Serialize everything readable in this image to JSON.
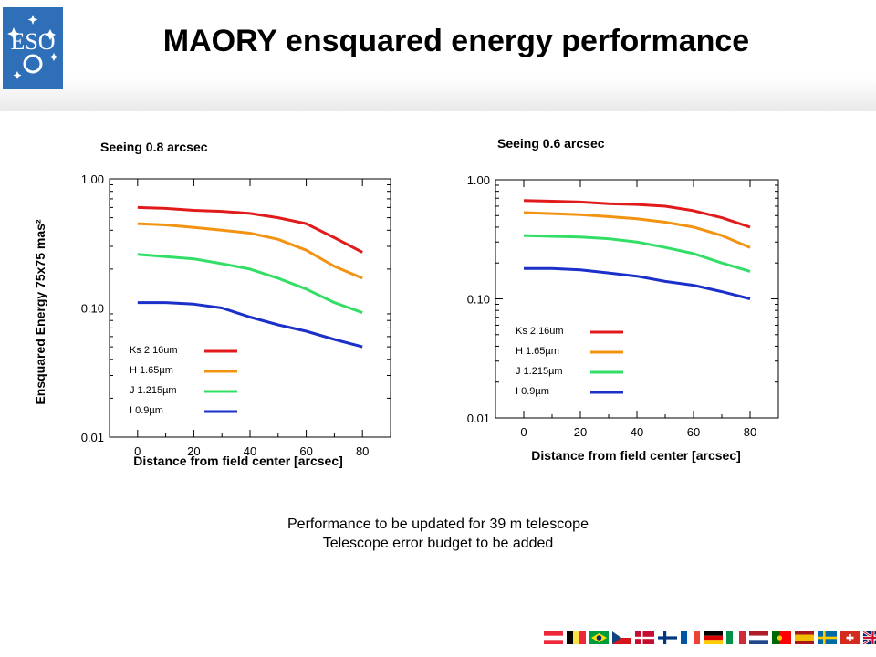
{
  "header": {
    "logo_text": "ESO",
    "title": "MAORY ensquared energy performance"
  },
  "notes": {
    "line1": "Performance to be updated for 39 m telescope",
    "line2": "Telescope error budget to be added"
  },
  "colors": {
    "Ks": "#e11b1b",
    "H": "#f39312",
    "J": "#33de66",
    "I": "#1b2fc9",
    "logo_blue": "#2e6fb8"
  },
  "flags": [
    "austria-flag",
    "belgium-flag",
    "brazil-flag",
    "czech-flag",
    "denmark-flag",
    "finland-flag",
    "france-flag",
    "germany-flag",
    "italy-flag",
    "netherlands-flag",
    "portugal-flag",
    "spain-flag",
    "sweden-flag",
    "switzerland-flag",
    "uk-flag",
    "chile-flag"
  ],
  "chart_data": [
    {
      "type": "line",
      "title": "Seeing 0.8 arcsec",
      "xlabel": "Distance from field center [arcsec]",
      "ylabel": "Ensquared Energy 75x75 mas²",
      "xticks": [
        "0",
        "20",
        "40",
        "60",
        "80"
      ],
      "yticks": [
        "0.01",
        "0.10",
        "1.00"
      ],
      "xlim": [
        -10,
        90
      ],
      "ylim": [
        0.01,
        1.0
      ],
      "yscale": "log",
      "grid": false,
      "legend_position": "bottom-left",
      "x": [
        0,
        10,
        20,
        30,
        40,
        50,
        60,
        70,
        80
      ],
      "series": [
        {
          "name": "Ks 2.16um",
          "color_key": "Ks",
          "values": [
            0.6,
            0.59,
            0.57,
            0.56,
            0.54,
            0.5,
            0.45,
            0.35,
            0.27
          ]
        },
        {
          "name": "H 1.65µm",
          "color_key": "H",
          "values": [
            0.45,
            0.44,
            0.42,
            0.4,
            0.38,
            0.34,
            0.28,
            0.21,
            0.17
          ]
        },
        {
          "name": "J 1.215µm",
          "color_key": "J",
          "values": [
            0.26,
            0.25,
            0.24,
            0.22,
            0.2,
            0.17,
            0.14,
            0.11,
            0.092
          ]
        },
        {
          "name": "I 0.9µm",
          "color_key": "I",
          "values": [
            0.11,
            0.11,
            0.107,
            0.1,
            0.085,
            0.074,
            0.066,
            0.057,
            0.05
          ]
        }
      ]
    },
    {
      "type": "line",
      "title": "Seeing 0.6 arcsec",
      "xlabel": "Distance from field center [arcsec]",
      "ylabel": "",
      "xticks": [
        "0",
        "20",
        "40",
        "60",
        "80"
      ],
      "yticks": [
        "0.01",
        "0.10",
        "1.00"
      ],
      "xlim": [
        -10,
        90
      ],
      "ylim": [
        0.01,
        1.0
      ],
      "yscale": "log",
      "grid": false,
      "legend_position": "bottom-left",
      "x": [
        0,
        10,
        20,
        30,
        40,
        50,
        60,
        70,
        80
      ],
      "series": [
        {
          "name": "Ks 2.16um",
          "color_key": "Ks",
          "values": [
            0.67,
            0.66,
            0.65,
            0.63,
            0.62,
            0.6,
            0.55,
            0.48,
            0.4
          ]
        },
        {
          "name": "H 1.65µm",
          "color_key": "H",
          "values": [
            0.53,
            0.52,
            0.51,
            0.49,
            0.47,
            0.44,
            0.4,
            0.34,
            0.27
          ]
        },
        {
          "name": "J 1.215µm",
          "color_key": "J",
          "values": [
            0.34,
            0.335,
            0.33,
            0.32,
            0.3,
            0.27,
            0.24,
            0.2,
            0.17
          ]
        },
        {
          "name": "I 0.9µm",
          "color_key": "I",
          "values": [
            0.18,
            0.18,
            0.175,
            0.165,
            0.155,
            0.14,
            0.13,
            0.115,
            0.1
          ]
        }
      ]
    }
  ]
}
